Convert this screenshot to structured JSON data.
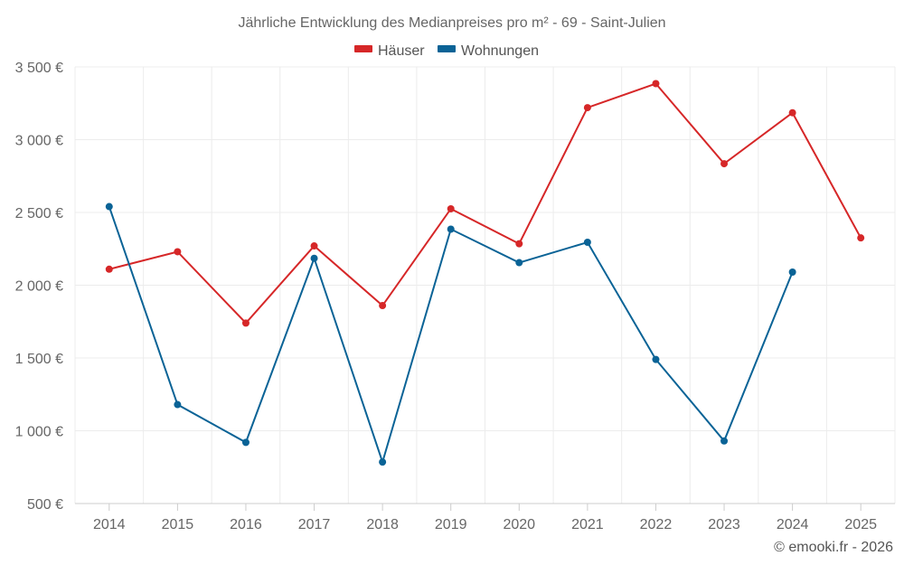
{
  "chart_data": {
    "type": "line",
    "title": "Jährliche Entwicklung des Medianpreises pro m² - 69 - Saint-Julien",
    "xlabel": "",
    "ylabel": "",
    "categories": [
      "2014",
      "2015",
      "2016",
      "2017",
      "2018",
      "2019",
      "2020",
      "2021",
      "2022",
      "2023",
      "2024",
      "2025"
    ],
    "ylim": [
      500,
      3500
    ],
    "yticks": [
      500,
      1000,
      1500,
      2000,
      2500,
      3000,
      3500
    ],
    "ytick_labels": [
      "500 €",
      "1 000 €",
      "1 500 €",
      "2 000 €",
      "2 500 €",
      "3 000 €",
      "3 500 €"
    ],
    "grid": true,
    "legend_position": "top-center",
    "series": [
      {
        "name": "Häuser",
        "color": "#d62728",
        "values": [
          2110,
          2230,
          1740,
          2270,
          1860,
          2525,
          2285,
          3220,
          3385,
          2835,
          3185,
          2325
        ]
      },
      {
        "name": "Wohnungen",
        "color": "#0a6396",
        "values": [
          2540,
          1180,
          920,
          2185,
          785,
          2385,
          2155,
          2295,
          1490,
          930,
          2090,
          null
        ]
      }
    ],
    "credit": "© emooki.fr - 2026"
  }
}
